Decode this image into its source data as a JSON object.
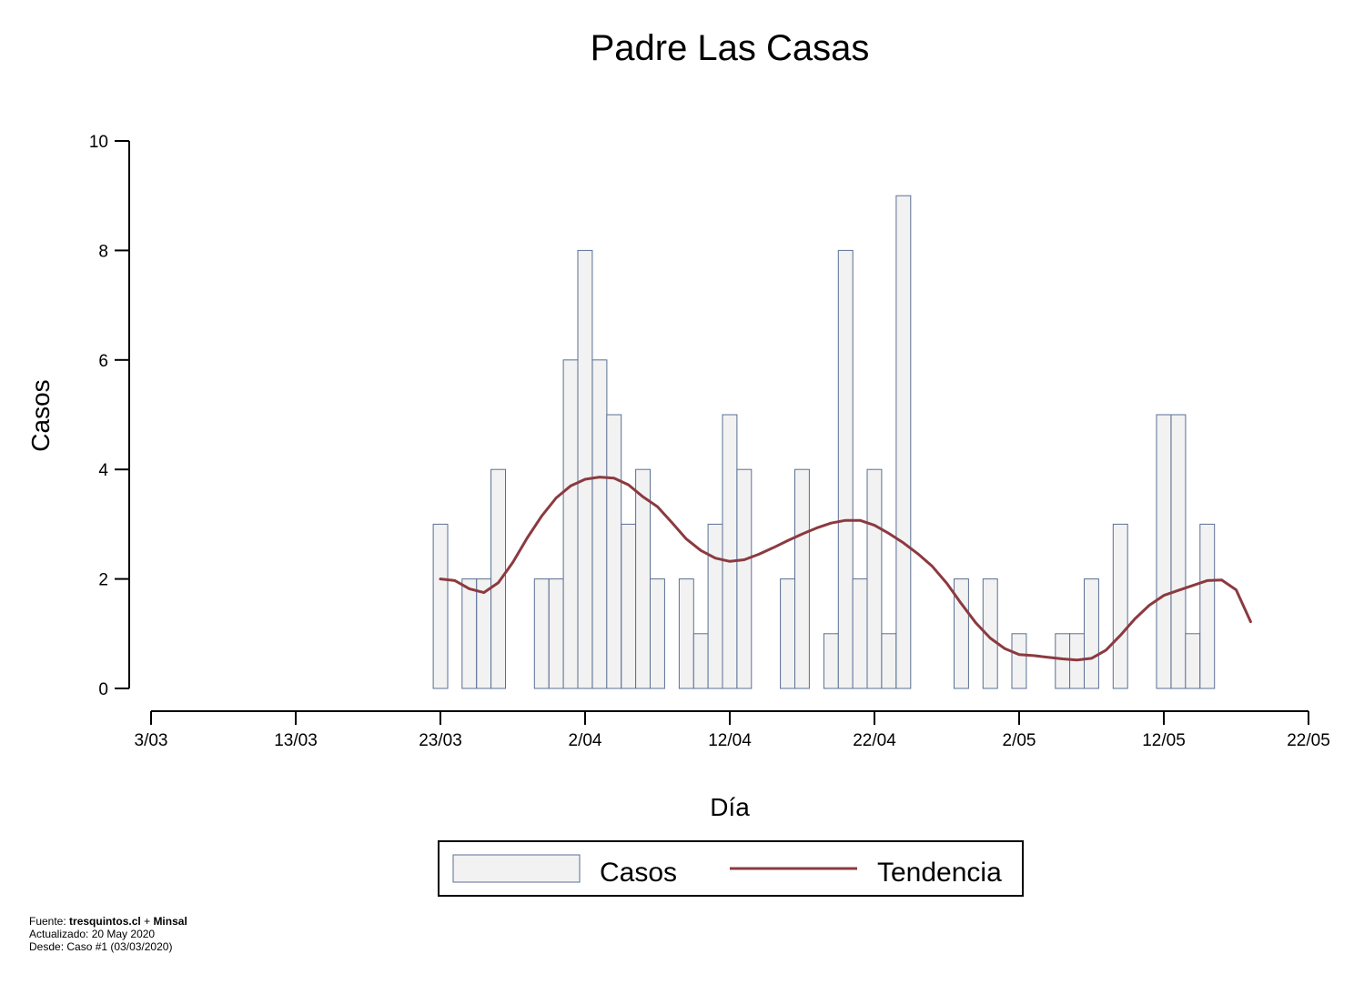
{
  "chart_data": {
    "type": "bar",
    "title": "Padre Las Casas",
    "xlabel": "Día",
    "ylabel": "Casos",
    "ylim": [
      0,
      10
    ],
    "y_ticks": [
      0,
      2,
      4,
      6,
      8,
      10
    ],
    "y_tick_labels": [
      "0",
      "2",
      "4",
      "6",
      "8",
      "10"
    ],
    "x_ticks": [
      0,
      10,
      20,
      30,
      40,
      50,
      60,
      70,
      80
    ],
    "x_tick_labels": [
      "3/03",
      "13/03",
      "23/03",
      "2/04",
      "12/04",
      "22/04",
      "2/05",
      "12/05",
      "22/05"
    ],
    "x_origin_date": "2020-03-03",
    "xlim": [
      0,
      80
    ],
    "grid": false,
    "legend_position": "bottom-center",
    "series": [
      {
        "name": "Casos",
        "type": "bar",
        "fill": "#f2f2f2",
        "stroke": "#5a6f94",
        "days": [
          20,
          22,
          23,
          24,
          27,
          28,
          29,
          30,
          31,
          32,
          33,
          34,
          35,
          37,
          38,
          39,
          40,
          41,
          44,
          45,
          47,
          48,
          49,
          50,
          51,
          52,
          56,
          58,
          60,
          63,
          64,
          65,
          67,
          70,
          71,
          72,
          73,
          75
        ],
        "values": [
          3,
          2,
          2,
          4,
          2,
          2,
          6,
          8,
          6,
          5,
          3,
          4,
          2,
          2,
          1,
          3,
          5,
          4,
          2,
          4,
          1,
          8,
          2,
          4,
          1,
          9,
          2,
          2,
          1,
          1,
          1,
          2,
          3,
          5,
          5,
          1,
          3,
          0
        ]
      },
      {
        "name": "Tendencia",
        "type": "line",
        "color": "#8b3a40",
        "x": [
          20,
          21,
          22,
          23,
          24,
          25,
          26,
          27,
          28,
          29,
          30,
          31,
          32,
          33,
          34,
          35,
          36,
          37,
          38,
          39,
          40,
          41,
          42,
          43,
          44,
          45,
          46,
          47,
          48,
          49,
          50,
          51,
          52,
          53,
          54,
          55,
          56,
          57,
          58,
          59,
          60,
          61,
          62,
          63,
          64,
          65,
          66,
          67,
          68,
          69,
          70,
          71,
          72,
          73,
          74,
          75,
          76
        ],
        "y": [
          2.0,
          1.97,
          1.82,
          1.75,
          1.93,
          2.3,
          2.75,
          3.15,
          3.48,
          3.7,
          3.82,
          3.86,
          3.84,
          3.72,
          3.5,
          3.32,
          3.03,
          2.73,
          2.52,
          2.38,
          2.32,
          2.35,
          2.45,
          2.57,
          2.7,
          2.82,
          2.93,
          3.02,
          3.07,
          3.07,
          2.98,
          2.83,
          2.66,
          2.46,
          2.23,
          1.92,
          1.55,
          1.2,
          0.92,
          0.73,
          0.62,
          0.6,
          0.57,
          0.54,
          0.52,
          0.55,
          0.7,
          0.97,
          1.27,
          1.52,
          1.7,
          1.79,
          1.88,
          1.97,
          1.98,
          1.8,
          1.22
        ]
      }
    ]
  },
  "legend": {
    "bar_label": "Casos",
    "line_label": "Tendencia"
  },
  "footer": {
    "source_prefix": "Fuente:",
    "source_site": "tresquintos.cl",
    "source_joiner": "+",
    "source_org": "Minsal",
    "updated": "Actualizado: 20 May 2020",
    "since": "Desde: Caso #1  (03/03/2020)"
  }
}
